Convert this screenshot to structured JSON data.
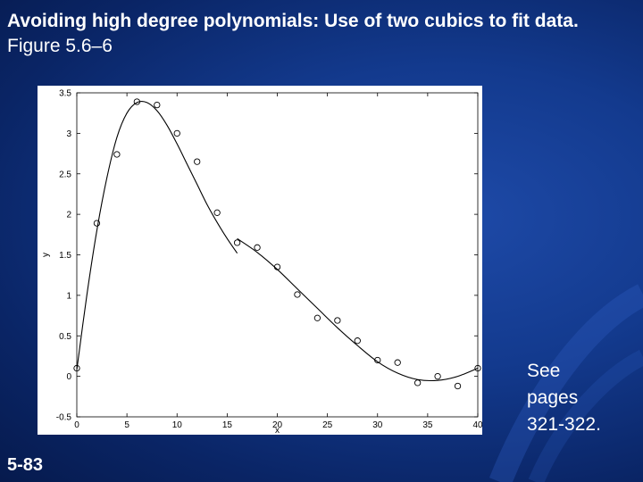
{
  "slide": {
    "title_bold": "Avoiding high degree polynomials:  Use of two cubics to fit data.",
    "title_regular": "Figure 5.6–6",
    "note_lines": [
      "See",
      "pages",
      "321-322."
    ],
    "slide_number": "5-83"
  },
  "colors": {
    "background": "#133a8e",
    "text": "#ffffff",
    "plot_ink": "#000000"
  },
  "chart_data": {
    "type": "scatter",
    "title": "",
    "xlabel": "x",
    "ylabel": "y",
    "xlim": [
      0,
      40
    ],
    "ylim": [
      -0.5,
      3.5
    ],
    "xticks": [
      0,
      5,
      10,
      15,
      20,
      25,
      30,
      35,
      40
    ],
    "yticks": [
      -0.5,
      0,
      0.5,
      1,
      1.5,
      2,
      2.5,
      3,
      3.5
    ],
    "grid": false,
    "points": {
      "x": [
        0,
        2,
        4,
        6,
        8,
        10,
        12,
        14,
        16,
        18,
        20,
        22,
        24,
        26,
        28,
        30,
        32,
        34,
        36,
        38,
        40
      ],
      "y": [
        0.1,
        1.89,
        2.74,
        3.39,
        3.35,
        3.0,
        2.65,
        2.02,
        1.65,
        1.59,
        1.35,
        1.01,
        0.72,
        0.69,
        0.44,
        0.2,
        0.17,
        -0.08,
        0.0,
        -0.12,
        0.1
      ]
    },
    "curves": [
      {
        "x": [
          0,
          1,
          2,
          3,
          4,
          5,
          6,
          7,
          8,
          9,
          10,
          11,
          12,
          13,
          14,
          15,
          16
        ],
        "y": [
          0.08,
          1.0,
          1.8,
          2.45,
          2.95,
          3.25,
          3.38,
          3.38,
          3.28,
          3.1,
          2.87,
          2.62,
          2.37,
          2.12,
          1.9,
          1.7,
          1.52
        ]
      },
      {
        "x": [
          16,
          18,
          20,
          22,
          24,
          26,
          28,
          30,
          32,
          34,
          36,
          38,
          40
        ],
        "y": [
          1.7,
          1.53,
          1.32,
          1.08,
          0.84,
          0.6,
          0.38,
          0.18,
          0.04,
          -0.04,
          -0.05,
          0.0,
          0.1
        ]
      }
    ]
  }
}
